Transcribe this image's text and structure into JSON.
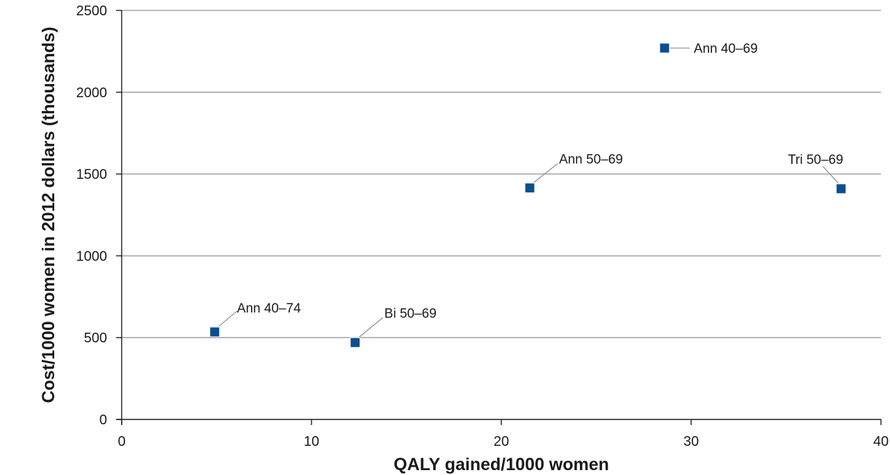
{
  "chart_data": {
    "type": "scatter",
    "title": "",
    "xlabel": "QALY gained/1000 women",
    "ylabel": "Cost/1000 women in 2012 dollars (thousands)",
    "xlim": [
      0,
      40
    ],
    "ylim": [
      0,
      2500
    ],
    "x_ticks": [
      0,
      10,
      20,
      30,
      40
    ],
    "y_ticks": [
      0,
      500,
      1000,
      1500,
      2000,
      2500
    ],
    "x_tick_labels": [
      "0",
      "10",
      "20",
      "30",
      "40"
    ],
    "y_tick_labels": [
      "0",
      "500",
      "1000",
      "1500",
      "2000",
      "2500"
    ],
    "grid": "horizontal",
    "legend": "none",
    "marker_color": "#0b4f8f",
    "points": [
      {
        "label": "Ann 40–74",
        "x": 4.9,
        "y": 535
      },
      {
        "label": "Bi 50–69",
        "x": 12.3,
        "y": 470
      },
      {
        "label": "Ann 50–69",
        "x": 21.5,
        "y": 1415
      },
      {
        "label": "Ann 40–69",
        "x": 28.6,
        "y": 2270
      },
      {
        "label": "Tri 50–69",
        "x": 37.9,
        "y": 1410
      }
    ]
  }
}
